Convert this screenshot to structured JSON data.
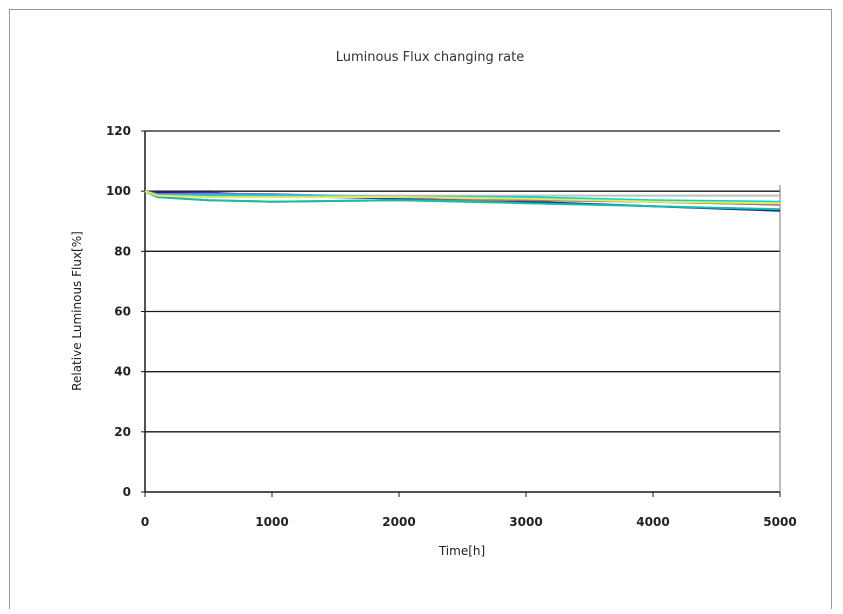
{
  "chart_data": {
    "type": "line",
    "title": "Luminous Flux changing rate",
    "xlabel": "Time[h]",
    "ylabel": "Relative Luminous Flux[%]",
    "xlim": [
      0,
      5000
    ],
    "ylim": [
      0,
      120
    ],
    "xticks": [
      "0",
      "1000",
      "2000",
      "3000",
      "4000",
      "5000"
    ],
    "yticks": [
      "0",
      "20",
      "40",
      "60",
      "80",
      "100",
      "120"
    ],
    "grid": "horizontal",
    "legend": "none",
    "series": [
      {
        "color": "#1a2a8c",
        "x": [
          0,
          100,
          500,
          1000,
          2000,
          3000,
          4000,
          5000
        ],
        "y": [
          100,
          99.5,
          99.5,
          98.5,
          97.5,
          96.5,
          95,
          93.5
        ]
      },
      {
        "color": "#7a7ad6",
        "x": [
          0,
          100,
          500,
          1000,
          2000,
          3000,
          4000,
          5000
        ],
        "y": [
          100,
          99,
          99.2,
          99,
          98,
          97.5,
          96.5,
          95.5
        ]
      },
      {
        "color": "#a07878",
        "x": [
          0,
          100,
          500,
          1000,
          2000,
          3000,
          4000,
          5000
        ],
        "y": [
          100,
          98,
          97,
          96.5,
          97,
          97,
          96.5,
          95.5
        ]
      },
      {
        "color": "#c0c0c0",
        "x": [
          0,
          100,
          500,
          1000,
          2000,
          3000,
          4000,
          5000
        ],
        "y": [
          100,
          98.5,
          98.5,
          98.5,
          98.5,
          98.5,
          98.5,
          98.5
        ]
      },
      {
        "color": "#00d8d0",
        "x": [
          0,
          100,
          500,
          1000,
          2000,
          3000,
          4000,
          5000
        ],
        "y": [
          100,
          98.5,
          98.5,
          98.5,
          98,
          98,
          97,
          96.5
        ]
      },
      {
        "color": "#10c0a8",
        "x": [
          0,
          100,
          500,
          1000,
          2000,
          3000,
          4000,
          5000
        ],
        "y": [
          100,
          98,
          97,
          96.5,
          97,
          96,
          95,
          94
        ]
      },
      {
        "color": "#e8e860",
        "x": [
          0,
          100,
          500,
          1000,
          2000,
          3000,
          4000,
          5000
        ],
        "y": [
          100,
          98.5,
          98,
          98,
          98,
          97.5,
          96.5,
          96
        ]
      }
    ]
  }
}
